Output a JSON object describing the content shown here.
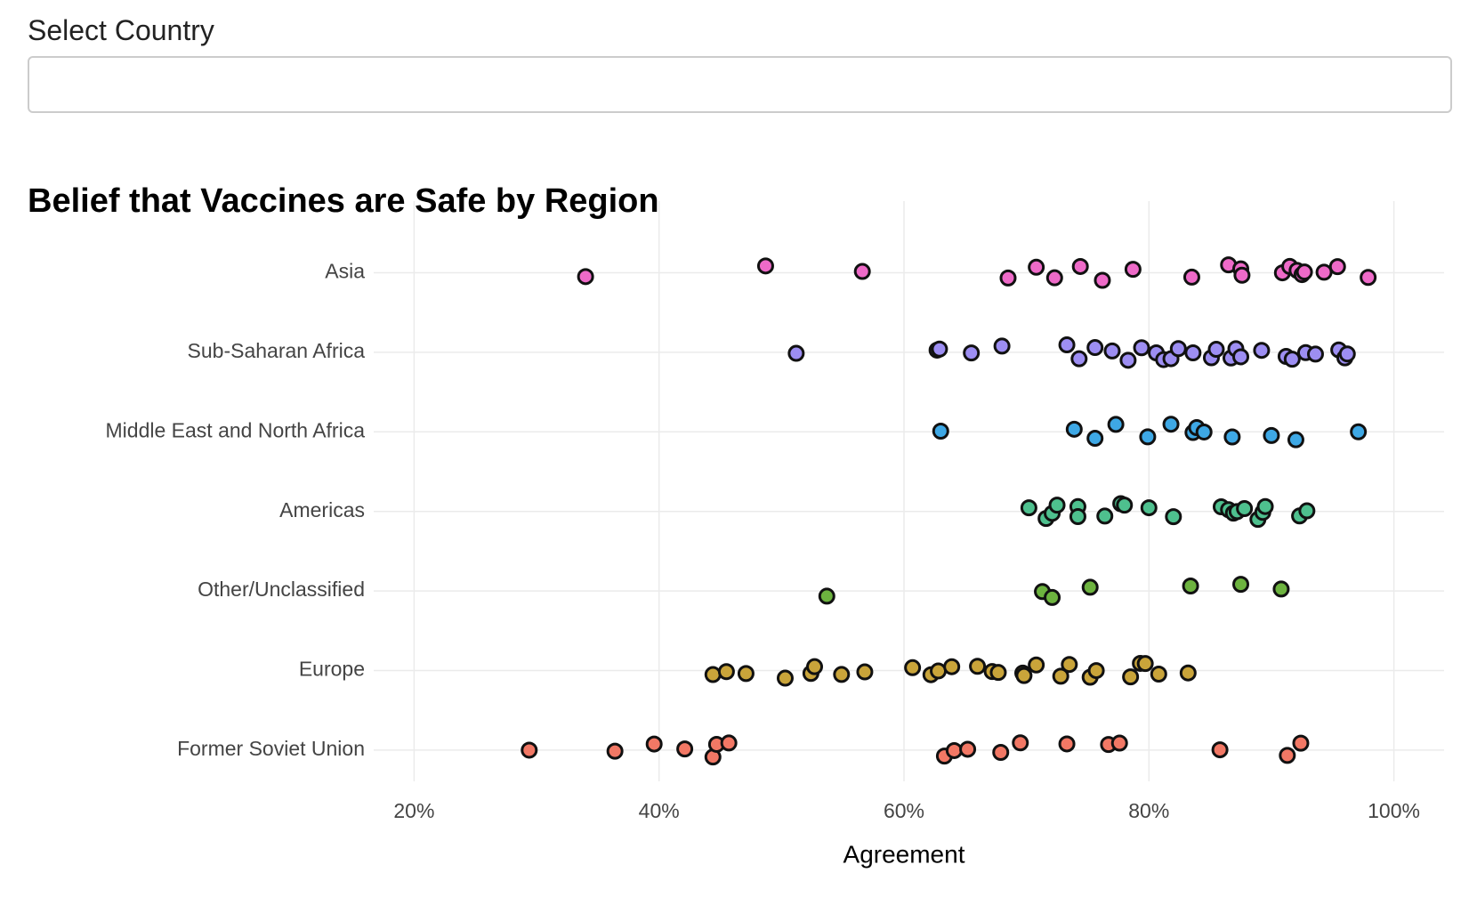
{
  "control": {
    "label": "Select Country"
  },
  "chart_data": {
    "type": "strip",
    "title": "Belief that Vaccines are Safe by Region",
    "x_label": "Agreement",
    "xlim": [
      16.7,
      104.1
    ],
    "xticks": [
      {
        "value": 20,
        "label": "20%"
      },
      {
        "value": 40,
        "label": "40%"
      },
      {
        "value": 60,
        "label": "60%"
      },
      {
        "value": 80,
        "label": "80%"
      },
      {
        "value": 100,
        "label": "100%"
      }
    ],
    "grid": true,
    "series": [
      {
        "name": "Asia",
        "color": "#ee6ac8",
        "values": [
          34.0,
          48.7,
          56.6,
          68.5,
          70.8,
          72.3,
          74.4,
          76.2,
          78.7,
          83.5,
          86.5,
          87.5,
          87.6,
          90.9,
          91.5,
          92.1,
          92.5,
          92.7,
          94.3,
          95.4,
          97.9
        ]
      },
      {
        "name": "Sub-Saharan Africa",
        "color": "#9d8ef2",
        "values": [
          51.2,
          62.7,
          62.9,
          65.5,
          68.0,
          73.3,
          74.3,
          75.6,
          77.0,
          78.3,
          79.4,
          80.6,
          81.2,
          81.8,
          82.4,
          83.6,
          85.1,
          85.5,
          86.7,
          87.1,
          87.5,
          89.2,
          91.2,
          91.7,
          92.8,
          93.6,
          95.5,
          96.0,
          96.2
        ]
      },
      {
        "name": "Middle East and North Africa",
        "color": "#3ea8e5",
        "values": [
          63.0,
          73.9,
          75.6,
          77.3,
          79.9,
          81.8,
          83.6,
          83.9,
          84.5,
          86.8,
          90.0,
          92.0,
          97.1
        ]
      },
      {
        "name": "Americas",
        "color": "#4ec08e",
        "values": [
          70.2,
          71.6,
          72.1,
          72.5,
          74.2,
          74.2,
          76.4,
          77.7,
          78.0,
          80.0,
          82.0,
          85.9,
          86.5,
          86.9,
          87.2,
          87.8,
          88.9,
          89.3,
          89.5,
          92.3,
          92.9
        ]
      },
      {
        "name": "Other/Unclassified",
        "color": "#6db33f",
        "values": [
          53.7,
          71.3,
          72.1,
          75.2,
          83.4,
          87.5,
          90.8
        ]
      },
      {
        "name": "Europe",
        "color": "#c9a43a",
        "values": [
          44.4,
          45.5,
          47.1,
          50.3,
          52.4,
          52.7,
          54.9,
          56.8,
          60.7,
          62.2,
          62.8,
          63.9,
          66.0,
          67.2,
          67.7,
          69.7,
          69.8,
          70.8,
          72.8,
          73.5,
          75.2,
          75.7,
          78.5,
          79.3,
          79.7,
          80.8,
          83.2
        ]
      },
      {
        "name": "Former Soviet Union",
        "color": "#f27865",
        "values": [
          29.4,
          36.4,
          39.6,
          42.1,
          44.4,
          44.7,
          45.7,
          63.3,
          64.1,
          65.2,
          67.9,
          69.5,
          73.3,
          76.7,
          77.6,
          85.8,
          91.3,
          92.4
        ]
      }
    ]
  }
}
